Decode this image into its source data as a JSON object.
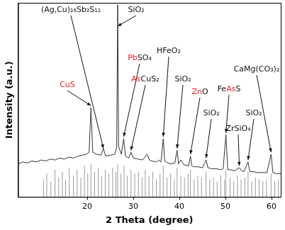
{
  "chart_data": {
    "type": "line",
    "x_label": "2 Theta (degree)",
    "y_label": "Intensity (a.u.)",
    "xlim": [
      5,
      62
    ],
    "xticks": [
      20,
      30,
      40,
      50,
      60
    ],
    "ylim": [
      0,
      100
    ],
    "tick_labels": "x",
    "grid": false,
    "series": [
      {
        "type": "line",
        "color": "#333333",
        "x": [
          5,
          6,
          7,
          8,
          9,
          10,
          11,
          12,
          13,
          14,
          15,
          16,
          17,
          18,
          19,
          19.8,
          20.4,
          20.8,
          21.2,
          22,
          23,
          23.5,
          24,
          25,
          26,
          26.4,
          26.6,
          26.8,
          27.4,
          27.9,
          28.3,
          29,
          29.5,
          30,
          31,
          32,
          33,
          33.5,
          34,
          35,
          35.5,
          36,
          36.5,
          36.8,
          37.5,
          38,
          39,
          39.5,
          39.8,
          40.3,
          41,
          42,
          42.4,
          42.7,
          43,
          44,
          45,
          45.8,
          46.2,
          47,
          48,
          49,
          49.5,
          50.1,
          50.5,
          51,
          52,
          53,
          53.5,
          54,
          54.9,
          55.3,
          56,
          57,
          58,
          59,
          59.9,
          60.3,
          61,
          62
        ],
        "values": [
          17,
          18,
          17.5,
          18.5,
          18,
          19,
          18.5,
          19.5,
          19,
          20,
          19.5,
          20.5,
          20,
          21,
          21.5,
          22,
          23,
          46,
          23,
          22,
          21.5,
          25,
          21,
          21.5,
          22,
          26,
          99,
          26,
          22,
          30,
          21,
          20,
          23,
          20,
          19.5,
          19,
          22,
          19,
          18.5,
          18,
          19,
          18,
          30,
          18.5,
          17.5,
          17,
          17.5,
          24,
          17,
          19,
          16.5,
          16,
          21,
          16,
          15.5,
          15.5,
          15,
          19,
          15,
          14.5,
          14.5,
          14,
          14.5,
          32,
          14,
          14,
          13.5,
          15,
          13.5,
          13,
          18,
          13,
          13,
          12.5,
          12.5,
          12.5,
          22,
          12.5,
          12,
          12
        ]
      },
      {
        "type": "bar",
        "color": "#9a9a9a",
        "x": [
          10.5,
          11.2,
          12.1,
          13.0,
          13.8,
          14.6,
          15.3,
          16.1,
          17.0,
          17.8,
          18.6,
          19.4,
          20.1,
          20.8,
          21.6,
          22.4,
          23.1,
          23.9,
          24.7,
          25.5,
          26.2,
          26.6,
          27.3,
          28.0,
          28.7,
          29.5,
          30.3,
          31.1,
          31.9,
          32.6,
          33.4,
          34.2,
          35.0,
          35.8,
          36.5,
          37.3,
          38.1,
          38.9,
          39.5,
          40.3,
          41.1,
          41.9,
          42.4,
          43.2,
          44.0,
          44.8,
          45.8,
          46.6,
          47.4,
          48.2,
          49.0,
          49.8,
          50.1,
          51.0,
          51.8,
          52.6,
          53.4,
          54.2,
          54.9,
          55.7,
          56.5,
          57.3,
          58.1,
          58.9,
          59.9,
          60.7,
          61.5
        ],
        "values": [
          9,
          12,
          8,
          14,
          10,
          13,
          9,
          15,
          11,
          14,
          10,
          16,
          12,
          17,
          13,
          15,
          11,
          14,
          12,
          15,
          13,
          17,
          12,
          16,
          11,
          14,
          12,
          13,
          10,
          14,
          11,
          13,
          9,
          12,
          16,
          10,
          12,
          9,
          15,
          11,
          10,
          12,
          14,
          9,
          11,
          10,
          13,
          9,
          10,
          8,
          11,
          9,
          14,
          10,
          8,
          11,
          9,
          10,
          13,
          8,
          10,
          9,
          8,
          9,
          12,
          8,
          9
        ]
      }
    ],
    "annotations": [
      {
        "x": 23.5,
        "y": 25,
        "parts": [
          {
            "text": "(Ag,Cu)₁₆Sb₂S₁₁"
          }
        ]
      },
      {
        "x": 26.6,
        "y": 88,
        "parts": [
          {
            "text": "SiO₂"
          }
        ]
      },
      {
        "x": 20.8,
        "y": 47,
        "parts": [
          {
            "text": "CuS",
            "color": "#e8202a"
          }
        ]
      },
      {
        "x": 27.9,
        "y": 31,
        "parts": [
          {
            "text": "Pb",
            "color": "#e8202a"
          },
          {
            "text": "SO₄"
          }
        ]
      },
      {
        "x": 29.5,
        "y": 24,
        "parts": [
          {
            "text": "As",
            "color": "#e8202a"
          },
          {
            "text": "CuS₂"
          }
        ]
      },
      {
        "x": 36.5,
        "y": 31,
        "parts": [
          {
            "text": "HFeO₂"
          }
        ]
      },
      {
        "x": 39.5,
        "y": 25,
        "parts": [
          {
            "text": "SiO₂"
          }
        ]
      },
      {
        "x": 42.4,
        "y": 22,
        "parts": [
          {
            "text": "Zn",
            "color": "#e8202a"
          },
          {
            "text": "O"
          }
        ]
      },
      {
        "x": 45.8,
        "y": 20,
        "parts": [
          {
            "text": "SiO₂"
          }
        ]
      },
      {
        "x": 50.1,
        "y": 33,
        "parts": [
          {
            "text": "Fe"
          },
          {
            "text": "As",
            "color": "#e8202a"
          },
          {
            "text": "S"
          }
        ]
      },
      {
        "x": 53,
        "y": 16,
        "parts": [
          {
            "text": "ZrSiO₄"
          }
        ]
      },
      {
        "x": 54.9,
        "y": 19,
        "parts": [
          {
            "text": "SiO₂"
          }
        ]
      },
      {
        "x": 59.9,
        "y": 23,
        "parts": [
          {
            "text": "CaMg(CO₃)₂"
          }
        ]
      }
    ]
  }
}
